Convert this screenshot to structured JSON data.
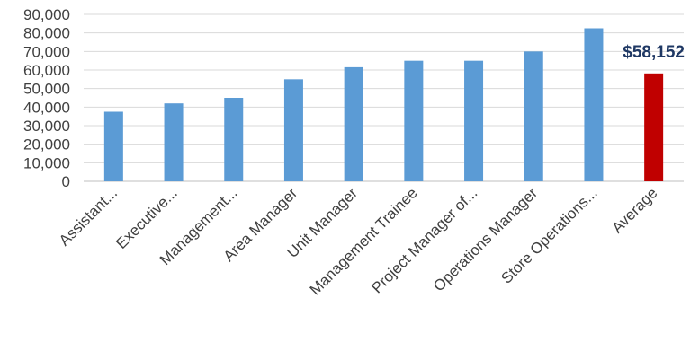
{
  "chart_data": {
    "type": "bar",
    "categories": [
      "Assistant...",
      "Executive...",
      "Management...",
      "Area Manager",
      "Unit Manager",
      "Management Trainee",
      "Project Manager of...",
      "Operations Manager",
      "Store Operations...",
      "Average"
    ],
    "values": [
      37500,
      42000,
      45000,
      55000,
      61500,
      65000,
      65000,
      70000,
      82500,
      58152
    ],
    "ylim": [
      0,
      90000
    ],
    "yticks": [
      0,
      10000,
      20000,
      30000,
      40000,
      50000,
      60000,
      70000,
      80000,
      90000
    ],
    "ytick_labels": [
      "0",
      "10,000",
      "20,000",
      "30,000",
      "40,000",
      "50,000",
      "60,000",
      "70,000",
      "80,000",
      "90,000"
    ],
    "grid": true,
    "legend": "none",
    "bar_colors": [
      "#5B9BD5",
      "#5B9BD5",
      "#5B9BD5",
      "#5B9BD5",
      "#5B9BD5",
      "#5B9BD5",
      "#5B9BD5",
      "#5B9BD5",
      "#5B9BD5",
      "#C00000"
    ],
    "gridline_color": "#D9D9D9",
    "data_labels": [
      {
        "category_index": 9,
        "text": "$58,152",
        "color": "#1F3864"
      }
    ]
  }
}
